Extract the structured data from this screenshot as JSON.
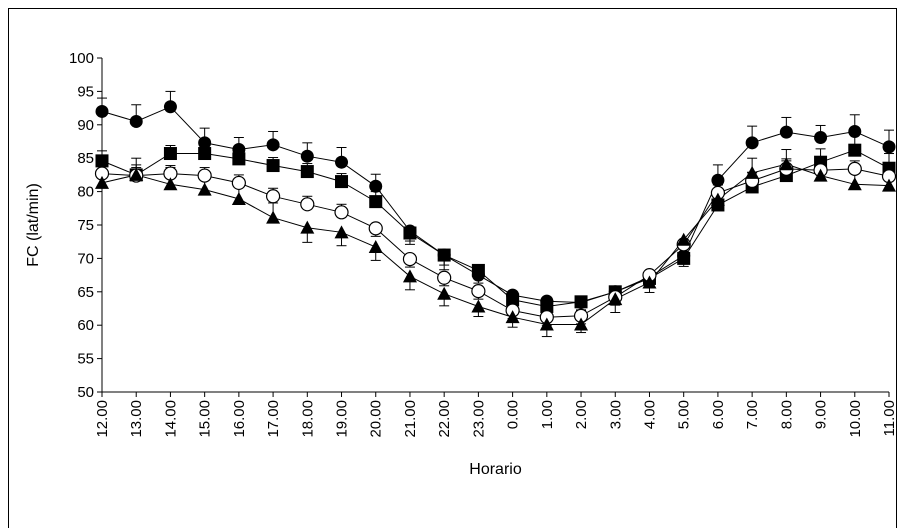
{
  "chart_data": {
    "type": "line",
    "xlabel": "Horario",
    "ylabel": "FC (lat/min)",
    "ylim": [
      50,
      100
    ],
    "yticks": [
      50,
      55,
      60,
      65,
      70,
      75,
      80,
      85,
      90,
      95,
      100
    ],
    "grid": false,
    "categories": [
      "12.00",
      "13.00",
      "14.00",
      "15.00",
      "16.00",
      "17.00",
      "18.00",
      "19.00",
      "20.00",
      "21.00",
      "22.00",
      "23.00",
      "0.00",
      "1.00",
      "2.00",
      "3.00",
      "4.00",
      "5.00",
      "6.00",
      "7.00",
      "8.00",
      "9.00",
      "10.00",
      "11.00"
    ],
    "series": [
      {
        "marker": "filled-circle",
        "values": [
          92.0,
          90.5,
          92.7,
          87.3,
          86.3,
          87.0,
          85.3,
          84.4,
          80.8,
          74.1,
          70.5,
          67.5,
          64.5,
          63.6,
          63.4,
          65.0,
          67.2,
          70.4,
          81.7,
          87.3,
          88.9,
          88.1,
          89.0,
          86.7
        ],
        "error": [
          2.0,
          2.5,
          2.3,
          2.2,
          1.8,
          2.0,
          2.0,
          2.2,
          1.8,
          2.0,
          2.2,
          1.2,
          1.8,
          1.8,
          1.2,
          1.2,
          1.2,
          1.0,
          2.3,
          2.5,
          2.2,
          1.8,
          2.5,
          2.5
        ]
      },
      {
        "marker": "filled-square",
        "values": [
          84.6,
          82.5,
          85.7,
          85.7,
          84.9,
          83.9,
          83.0,
          81.5,
          78.5,
          73.8,
          70.5,
          68.2,
          63.8,
          62.8,
          63.5,
          65.0,
          67.0,
          70.0,
          78.0,
          80.7,
          82.4,
          84.4,
          86.2,
          83.5
        ],
        "error": [
          1.5,
          1.5,
          1.2,
          1.5,
          1.5,
          1.2,
          1.2,
          1.2,
          1.5,
          1.2,
          1.5,
          1.2,
          1.2,
          1.2,
          1.2,
          1.2,
          1.2,
          1.2,
          1.8,
          2.2,
          2.5,
          2.0,
          2.5,
          2.2
        ]
      },
      {
        "marker": "open-circle",
        "values": [
          82.7,
          82.4,
          82.7,
          82.4,
          81.3,
          79.3,
          78.1,
          76.9,
          74.5,
          69.9,
          67.1,
          65.1,
          62.2,
          61.2,
          61.4,
          64.2,
          67.5,
          72.1,
          79.8,
          81.6,
          83.4,
          83.2,
          83.4,
          82.3
        ],
        "error": [
          1.2,
          1.2,
          1.2,
          1.2,
          1.2,
          1.2,
          1.2,
          1.2,
          1.2,
          1.2,
          1.2,
          1.2,
          1.2,
          1.2,
          1.2,
          1.2,
          1.2,
          1.2,
          1.2,
          1.2,
          1.2,
          1.2,
          1.2,
          1.2
        ]
      },
      {
        "marker": "filled-triangle",
        "values": [
          81.3,
          82.5,
          81.1,
          80.3,
          78.9,
          76.1,
          74.6,
          73.9,
          71.7,
          67.3,
          64.7,
          62.8,
          61.2,
          60.1,
          60.1,
          63.9,
          66.4,
          72.8,
          78.8,
          82.8,
          84.1,
          82.4,
          81.1,
          80.9
        ],
        "error": [
          1.5,
          2.5,
          2.5,
          2.2,
          2.2,
          2.2,
          2.2,
          2.0,
          2.0,
          2.0,
          1.8,
          1.5,
          1.5,
          1.8,
          1.2,
          2.0,
          1.5,
          1.2,
          2.2,
          2.2,
          2.2,
          1.8,
          2.2,
          2.0
        ]
      }
    ]
  }
}
